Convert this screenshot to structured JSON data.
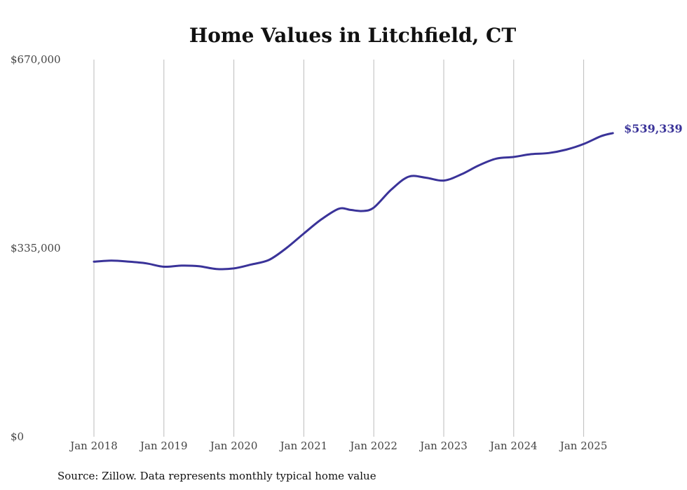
{
  "chart_data": {
    "type": "line",
    "title": "Home Values in Litchfield, CT",
    "ylim": [
      0,
      670000
    ],
    "yticks": [
      0,
      335000,
      670000
    ],
    "ytick_labels": [
      "$0",
      "$335,000",
      "$670,000"
    ],
    "xticks": [
      "Jan 2018",
      "Jan 2019",
      "Jan 2020",
      "Jan 2021",
      "Jan 2022",
      "Jan 2023",
      "Jan 2024",
      "Jan 2025"
    ],
    "grid": "vertical",
    "series": [
      {
        "color": "#3a3399",
        "end_label": "$539,339",
        "points": [
          {
            "date": "2018-01",
            "value": 311000
          },
          {
            "date": "2018-04",
            "value": 313000
          },
          {
            "date": "2018-07",
            "value": 311000
          },
          {
            "date": "2018-10",
            "value": 308000
          },
          {
            "date": "2019-01",
            "value": 302000
          },
          {
            "date": "2019-04",
            "value": 304000
          },
          {
            "date": "2019-07",
            "value": 303000
          },
          {
            "date": "2019-10",
            "value": 298000
          },
          {
            "date": "2020-01",
            "value": 299000
          },
          {
            "date": "2020-04",
            "value": 306000
          },
          {
            "date": "2020-07",
            "value": 314000
          },
          {
            "date": "2020-10",
            "value": 335000
          },
          {
            "date": "2021-01",
            "value": 361000
          },
          {
            "date": "2021-04",
            "value": 386000
          },
          {
            "date": "2021-07",
            "value": 405000
          },
          {
            "date": "2021-09",
            "value": 403000
          },
          {
            "date": "2021-11",
            "value": 401000
          },
          {
            "date": "2022-01",
            "value": 407000
          },
          {
            "date": "2022-04",
            "value": 439000
          },
          {
            "date": "2022-07",
            "value": 462000
          },
          {
            "date": "2022-10",
            "value": 460000
          },
          {
            "date": "2023-01",
            "value": 455000
          },
          {
            "date": "2023-04",
            "value": 466000
          },
          {
            "date": "2023-07",
            "value": 482000
          },
          {
            "date": "2023-10",
            "value": 494000
          },
          {
            "date": "2024-01",
            "value": 497000
          },
          {
            "date": "2024-04",
            "value": 502000
          },
          {
            "date": "2024-07",
            "value": 504000
          },
          {
            "date": "2024-10",
            "value": 510000
          },
          {
            "date": "2025-01",
            "value": 520000
          },
          {
            "date": "2025-04",
            "value": 534000
          },
          {
            "date": "2025-06",
            "value": 539339
          }
        ]
      }
    ]
  },
  "source_note": "Source: Zillow. Data represents monthly typical home value"
}
